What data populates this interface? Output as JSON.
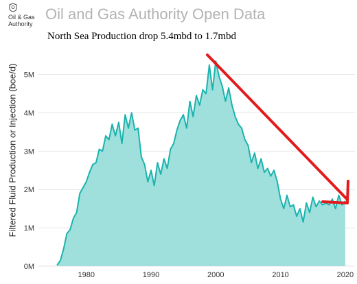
{
  "header": {
    "logo_text_line1": "Oil & Gas",
    "logo_text_line2": "Authority",
    "logo_icon": "crest-icon",
    "app_title": "Oil and Gas Authority Open Data"
  },
  "annotation": {
    "text": "North Sea Production drop 5.4mbd to 1.7mbd",
    "arrow_color": "#e31a1c"
  },
  "chart_data": {
    "type": "area",
    "title": "",
    "xlabel": "",
    "ylabel": "Filtered Fluid Production or Injection (boe/d)",
    "xlim": [
      1972.5,
      2021.5
    ],
    "ylim": [
      0,
      5600000
    ],
    "x_ticks": [
      1980,
      1990,
      2000,
      2010,
      2020
    ],
    "x_tick_labels": [
      "1980",
      "1990",
      "2000",
      "2010",
      "2020"
    ],
    "y_ticks": [
      0,
      1000000,
      2000000,
      3000000,
      4000000,
      5000000
    ],
    "y_tick_labels": [
      "0M",
      "1M",
      "2M",
      "3M",
      "4M",
      "5M"
    ],
    "grid": true,
    "colors": {
      "line": "#1ab3ad",
      "fill": "#9fe0dc",
      "grid": "#e6e6e6"
    },
    "series": [
      {
        "x": [
          1975.5,
          1976,
          1976.5,
          1977,
          1977.5,
          1978,
          1978.5,
          1979,
          1979.5,
          1980,
          1980.5,
          1981,
          1981.5,
          1982,
          1982.5,
          1983,
          1983.5,
          1984,
          1984.5,
          1985,
          1985.5,
          1986,
          1986.5,
          1987,
          1987.5,
          1988,
          1988.5,
          1989,
          1989.5,
          1990,
          1990.5,
          1991,
          1991.5,
          1992,
          1992.5,
          1993,
          1993.5,
          1994,
          1994.5,
          1995,
          1995.5,
          1996,
          1996.5,
          1997,
          1997.5,
          1998,
          1998.5,
          1999,
          1999.5,
          2000,
          2000.5,
          2001,
          2001.5,
          2002,
          2002.5,
          2003,
          2003.5,
          2004,
          2004.5,
          2005,
          2005.5,
          2006,
          2006.5,
          2007,
          2007.5,
          2008,
          2008.5,
          2009,
          2009.5,
          2010,
          2010.5,
          2011,
          2011.5,
          2012,
          2012.5,
          2013,
          2013.5,
          2014,
          2014.5,
          2015,
          2015.5,
          2016,
          2016.5,
          2017,
          2017.5,
          2018,
          2018.5,
          2019,
          2019.5,
          2020
        ],
        "values": [
          30000,
          150000,
          450000,
          850000,
          950000,
          1250000,
          1400000,
          1900000,
          2050000,
          2200000,
          2450000,
          2650000,
          2700000,
          3050000,
          3000000,
          3400000,
          3300000,
          3700000,
          3400000,
          3750000,
          3200000,
          3950000,
          3600000,
          4000000,
          3550000,
          3600000,
          2850000,
          2650000,
          2200000,
          2500000,
          2100000,
          2700000,
          2400000,
          2800000,
          2550000,
          3050000,
          3200000,
          3550000,
          3800000,
          3950000,
          3600000,
          4300000,
          3900000,
          4450000,
          4200000,
          4600000,
          4500000,
          5250000,
          4600000,
          5350000,
          4950000,
          4700000,
          4300000,
          4650000,
          4200000,
          3900000,
          3700000,
          3600000,
          3300000,
          3150000,
          2700000,
          2950000,
          2550000,
          2800000,
          2450000,
          2550000,
          2350000,
          2500000,
          2200000,
          1750000,
          1500000,
          1850000,
          1550000,
          1600000,
          1300000,
          1500000,
          1150000,
          1650000,
          1400000,
          1800000,
          1550000,
          1700000,
          1600000,
          1650000,
          1600000,
          1750000,
          1500000,
          1850000,
          1600000,
          1700000
        ]
      }
    ]
  }
}
